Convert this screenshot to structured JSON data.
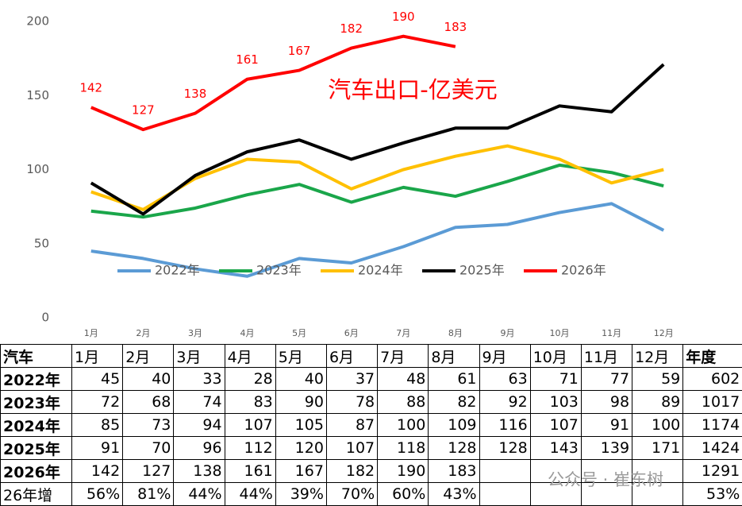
{
  "chart_data": {
    "type": "line",
    "title": "汽车出口-亿美元",
    "categories": [
      "1月",
      "2月",
      "3月",
      "4月",
      "5月",
      "6月",
      "7月",
      "8月",
      "9月",
      "10月",
      "11月",
      "12月"
    ],
    "series": [
      {
        "name": "2022年",
        "color": "#5b9bd5",
        "values": [
          45,
          40,
          33,
          28,
          40,
          37,
          48,
          61,
          63,
          71,
          77,
          59
        ]
      },
      {
        "name": "2023年",
        "color": "#1aa64a",
        "values": [
          72,
          68,
          74,
          83,
          90,
          78,
          88,
          82,
          92,
          103,
          98,
          89
        ]
      },
      {
        "name": "2024年",
        "color": "#ffc000",
        "values": [
          85,
          73,
          94,
          107,
          105,
          87,
          100,
          109,
          116,
          107,
          91,
          100
        ]
      },
      {
        "name": "2025年",
        "color": "#000000",
        "values": [
          91,
          70,
          96,
          112,
          120,
          107,
          118,
          128,
          128,
          143,
          139,
          171
        ]
      },
      {
        "name": "2026年",
        "color": "#ff0000",
        "data_labels": true,
        "values": [
          142,
          127,
          138,
          161,
          167,
          182,
          190,
          183,
          null,
          null,
          null,
          null
        ]
      }
    ],
    "ylim": [
      0,
      200
    ],
    "yticks": [
      0,
      50,
      100,
      150,
      200
    ],
    "grid": false,
    "legend": "bottom"
  },
  "table": {
    "corner": "汽车",
    "total_header": "年度",
    "totals": [
      602,
      1017,
      1174,
      1424,
      1291
    ],
    "growth_label": "26年增",
    "growth": [
      "56%",
      "81%",
      "44%",
      "44%",
      "39%",
      "70%",
      "60%",
      "43%",
      null,
      null,
      null,
      null
    ],
    "growth_total": "53%"
  },
  "watermark": "公众号 · 崔东树"
}
